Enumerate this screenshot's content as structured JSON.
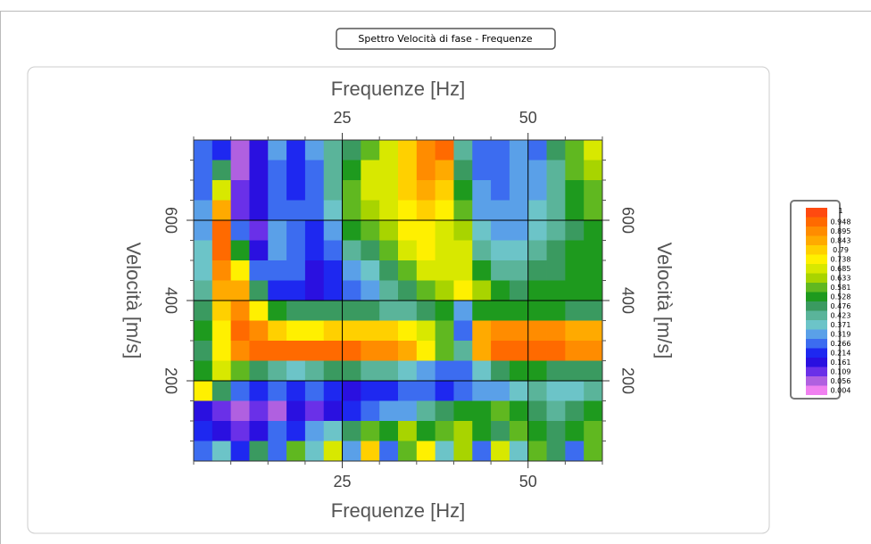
{
  "chart_data": {
    "type": "heatmap",
    "title": "Spettro Velocità di fase - Frequenze",
    "x_label": "Frequenze [Hz]",
    "y_label": "Velocità [m/s]",
    "xlim": [
      5,
      60
    ],
    "ylim": [
      0,
      800
    ],
    "xticks": [
      25,
      50
    ],
    "yticks": [
      200,
      400,
      600
    ],
    "xminorticks": [
      5,
      10,
      15,
      20,
      30,
      35,
      40,
      45,
      55,
      60
    ],
    "yminorticks": [
      50,
      100,
      150,
      250,
      300,
      350,
      450,
      500,
      550,
      650,
      700,
      750
    ],
    "grid": true,
    "x": [
      6.25,
      8.75,
      11.25,
      13.75,
      16.25,
      18.75,
      21.25,
      23.75,
      26.25,
      28.75,
      31.25,
      33.75,
      36.25,
      38.75,
      41.25,
      43.75,
      46.25,
      48.75,
      51.25,
      53.75,
      56.25,
      58.75
    ],
    "y": [
      775,
      725,
      675,
      625,
      575,
      525,
      475,
      425,
      375,
      325,
      275,
      225,
      175,
      125,
      75,
      25
    ],
    "z": [
      [
        0.3,
        0.25,
        0.1,
        0.2,
        0.35,
        0.25,
        0.35,
        0.45,
        0.5,
        0.6,
        0.7,
        0.8,
        0.9,
        0.95,
        0.45,
        0.3,
        0.3,
        0.35,
        0.3,
        0.5,
        0.6,
        0.7
      ],
      [
        0.3,
        0.5,
        0.1,
        0.2,
        0.3,
        0.25,
        0.3,
        0.45,
        0.55,
        0.7,
        0.7,
        0.8,
        0.9,
        0.85,
        0.5,
        0.3,
        0.3,
        0.35,
        0.35,
        0.45,
        0.6,
        0.65
      ],
      [
        0.3,
        0.7,
        0.12,
        0.18,
        0.3,
        0.25,
        0.3,
        0.45,
        0.6,
        0.7,
        0.72,
        0.8,
        0.85,
        0.8,
        0.55,
        0.35,
        0.3,
        0.35,
        0.35,
        0.45,
        0.55,
        0.6
      ],
      [
        0.35,
        0.85,
        0.15,
        0.2,
        0.3,
        0.28,
        0.3,
        0.4,
        0.6,
        0.65,
        0.7,
        0.78,
        0.8,
        0.75,
        0.6,
        0.35,
        0.35,
        0.35,
        0.4,
        0.45,
        0.55,
        0.6
      ],
      [
        0.35,
        0.95,
        0.3,
        0.15,
        0.35,
        0.3,
        0.25,
        0.35,
        0.55,
        0.62,
        0.68,
        0.74,
        0.78,
        0.72,
        0.65,
        0.4,
        0.35,
        0.35,
        0.4,
        0.45,
        0.5,
        0.55
      ],
      [
        0.4,
        0.95,
        0.55,
        0.2,
        0.35,
        0.3,
        0.25,
        0.3,
        0.45,
        0.5,
        0.6,
        0.7,
        0.75,
        0.7,
        0.7,
        0.45,
        0.4,
        0.4,
        0.45,
        0.5,
        0.55,
        0.55
      ],
      [
        0.4,
        0.9,
        0.75,
        0.3,
        0.3,
        0.3,
        0.2,
        0.25,
        0.35,
        0.4,
        0.5,
        0.6,
        0.7,
        0.7,
        0.72,
        0.55,
        0.45,
        0.45,
        0.5,
        0.5,
        0.55,
        0.55
      ],
      [
        0.45,
        0.85,
        0.85,
        0.5,
        0.25,
        0.25,
        0.2,
        0.25,
        0.3,
        0.35,
        0.45,
        0.5,
        0.6,
        0.65,
        0.78,
        0.65,
        0.55,
        0.5,
        0.55,
        0.55,
        0.55,
        0.55
      ],
      [
        0.5,
        0.8,
        0.9,
        0.75,
        0.55,
        0.5,
        0.5,
        0.5,
        0.5,
        0.5,
        0.45,
        0.45,
        0.5,
        0.55,
        0.35,
        0.55,
        0.55,
        0.55,
        0.55,
        0.55,
        0.5,
        0.5
      ],
      [
        0.55,
        0.75,
        0.95,
        0.9,
        0.8,
        0.78,
        0.78,
        0.8,
        0.82,
        0.82,
        0.8,
        0.78,
        0.72,
        0.6,
        0.3,
        0.85,
        0.9,
        0.92,
        0.92,
        0.9,
        0.88,
        0.85
      ],
      [
        0.5,
        0.75,
        0.9,
        0.95,
        0.97,
        0.97,
        0.97,
        0.97,
        0.95,
        0.92,
        0.9,
        0.85,
        0.75,
        0.6,
        0.45,
        0.85,
        0.95,
        0.97,
        0.97,
        0.95,
        0.92,
        0.9
      ],
      [
        0.55,
        0.7,
        0.6,
        0.5,
        0.45,
        0.4,
        0.45,
        0.5,
        0.5,
        0.45,
        0.45,
        0.4,
        0.35,
        0.3,
        0.3,
        0.4,
        0.5,
        0.55,
        0.55,
        0.5,
        0.5,
        0.5
      ],
      [
        0.75,
        0.5,
        0.3,
        0.25,
        0.3,
        0.25,
        0.3,
        0.25,
        0.2,
        0.25,
        0.25,
        0.3,
        0.3,
        0.25,
        0.3,
        0.35,
        0.35,
        0.4,
        0.45,
        0.4,
        0.4,
        0.45
      ],
      [
        0.2,
        0.15,
        0.1,
        0.15,
        0.1,
        0.2,
        0.15,
        0.2,
        0.25,
        0.3,
        0.35,
        0.35,
        0.45,
        0.5,
        0.55,
        0.55,
        0.6,
        0.55,
        0.5,
        0.45,
        0.5,
        0.55
      ],
      [
        0.25,
        0.2,
        0.15,
        0.2,
        0.3,
        0.25,
        0.35,
        0.4,
        0.5,
        0.6,
        0.55,
        0.65,
        0.55,
        0.6,
        0.65,
        0.55,
        0.5,
        0.6,
        0.55,
        0.5,
        0.55,
        0.6
      ],
      [
        0.3,
        0.4,
        0.25,
        0.5,
        0.3,
        0.6,
        0.4,
        0.7,
        0.35,
        0.8,
        0.3,
        0.6,
        0.75,
        0.4,
        0.65,
        0.3,
        0.7,
        0.4,
        0.6,
        0.5,
        0.3,
        0.6
      ]
    ],
    "colorscale": [
      {
        "value": 1,
        "color": "#ff4a10"
      },
      {
        "value": 0.948,
        "color": "#ff6a00"
      },
      {
        "value": 0.895,
        "color": "#ff8c00"
      },
      {
        "value": 0.843,
        "color": "#ffaa00"
      },
      {
        "value": 0.79,
        "color": "#ffd000"
      },
      {
        "value": 0.738,
        "color": "#fff000"
      },
      {
        "value": 0.685,
        "color": "#d8e800"
      },
      {
        "value": 0.633,
        "color": "#a8d400"
      },
      {
        "value": 0.581,
        "color": "#60b820"
      },
      {
        "value": 0.528,
        "color": "#1e9a1e"
      },
      {
        "value": 0.476,
        "color": "#3a9a60"
      },
      {
        "value": 0.423,
        "color": "#5ab49a"
      },
      {
        "value": 0.371,
        "color": "#6cc4c8"
      },
      {
        "value": 0.319,
        "color": "#5aa0e8"
      },
      {
        "value": 0.266,
        "color": "#3c6cf0"
      },
      {
        "value": 0.214,
        "color": "#1e28f0"
      },
      {
        "value": 0.161,
        "color": "#2a10e0"
      },
      {
        "value": 0.109,
        "color": "#6a30e8"
      },
      {
        "value": 0.056,
        "color": "#b060e0"
      },
      {
        "value": 0.004,
        "color": "#f080f0"
      }
    ]
  }
}
